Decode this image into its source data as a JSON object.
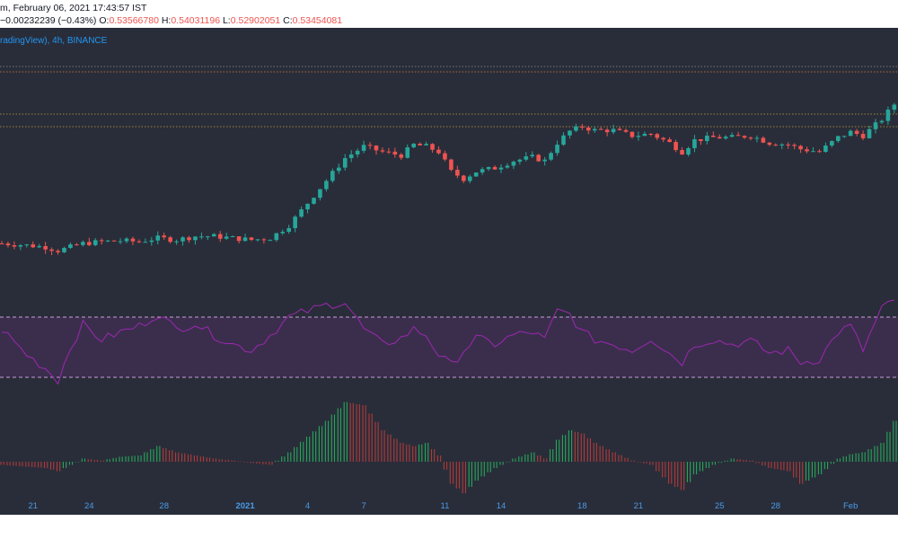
{
  "header": {
    "timestamp": "m, February 06, 2021 17:43:57 IST",
    "change": "−0.00232239 (−0.43%)",
    "ohlc": [
      {
        "label": "O:",
        "value": "0.53566780"
      },
      {
        "label": "H:",
        "value": "0.54031196"
      },
      {
        "label": "L:",
        "value": "0.52902051"
      },
      {
        "label": "C:",
        "value": "0.53454081"
      }
    ]
  },
  "legend": "radingView), 4h, BINANCE",
  "colors": {
    "background": "#292d39",
    "up": "#26a69a",
    "down": "#ef5350",
    "rsi_line": "#9c27b0",
    "rsi_band": "#4a2f5e",
    "macd_up": "#26a65b",
    "macd_down": "#b03a3a",
    "axis_text": "#4a9be8"
  },
  "chart_data": [
    {
      "type": "candlestick",
      "interval": "4h",
      "price_path": [
        [
          0,
          0.36
        ],
        [
          4,
          0.358
        ],
        [
          7,
          0.356
        ],
        [
          9,
          0.352
        ],
        [
          11,
          0.356
        ],
        [
          13,
          0.36
        ],
        [
          16,
          0.362
        ],
        [
          19,
          0.363
        ],
        [
          22,
          0.362
        ],
        [
          25,
          0.366
        ],
        [
          28,
          0.364
        ],
        [
          31,
          0.368
        ],
        [
          34,
          0.368
        ],
        [
          37,
          0.366
        ],
        [
          40,
          0.364
        ],
        [
          43,
          0.366
        ],
        [
          46,
          0.38
        ],
        [
          49,
          0.405
        ],
        [
          52,
          0.43
        ],
        [
          55,
          0.455
        ],
        [
          58,
          0.468
        ],
        [
          61,
          0.462
        ],
        [
          64,
          0.458
        ],
        [
          66,
          0.47
        ],
        [
          68,
          0.468
        ],
        [
          70,
          0.462
        ],
        [
          72,
          0.44
        ],
        [
          74,
          0.432
        ],
        [
          76,
          0.44
        ],
        [
          79,
          0.444
        ],
        [
          82,
          0.452
        ],
        [
          85,
          0.456
        ],
        [
          87,
          0.452
        ],
        [
          89,
          0.472
        ],
        [
          91,
          0.485
        ],
        [
          93,
          0.49
        ],
        [
          95,
          0.486
        ],
        [
          98,
          0.486
        ],
        [
          101,
          0.48
        ],
        [
          104,
          0.482
        ],
        [
          107,
          0.472
        ],
        [
          109,
          0.462
        ],
        [
          111,
          0.475
        ],
        [
          114,
          0.478
        ],
        [
          117,
          0.478
        ],
        [
          120,
          0.48
        ],
        [
          123,
          0.472
        ],
        [
          126,
          0.47
        ],
        [
          128,
          0.465
        ],
        [
          131,
          0.462
        ],
        [
          134,
          0.478
        ],
        [
          136,
          0.484
        ],
        [
          138,
          0.48
        ],
        [
          141,
          0.498
        ],
        [
          143,
          0.515
        ]
      ],
      "rsi_band": [
        30,
        70
      ],
      "rsi_path": [
        [
          0,
          62
        ],
        [
          4,
          45
        ],
        [
          7,
          36
        ],
        [
          9,
          28
        ],
        [
          11,
          50
        ],
        [
          13,
          65
        ],
        [
          16,
          55
        ],
        [
          19,
          60
        ],
        [
          22,
          64
        ],
        [
          25,
          72
        ],
        [
          28,
          62
        ],
        [
          31,
          66
        ],
        [
          34,
          58
        ],
        [
          37,
          52
        ],
        [
          40,
          48
        ],
        [
          43,
          58
        ],
        [
          46,
          70
        ],
        [
          49,
          74
        ],
        [
          52,
          78
        ],
        [
          55,
          80
        ],
        [
          58,
          62
        ],
        [
          61,
          52
        ],
        [
          64,
          56
        ],
        [
          66,
          62
        ],
        [
          68,
          58
        ],
        [
          70,
          45
        ],
        [
          72,
          38
        ],
        [
          74,
          48
        ],
        [
          76,
          56
        ],
        [
          79,
          52
        ],
        [
          82,
          58
        ],
        [
          85,
          60
        ],
        [
          87,
          55
        ],
        [
          89,
          74
        ],
        [
          91,
          72
        ],
        [
          93,
          60
        ],
        [
          95,
          55
        ],
        [
          98,
          52
        ],
        [
          101,
          48
        ],
        [
          104,
          56
        ],
        [
          107,
          46
        ],
        [
          109,
          40
        ],
        [
          111,
          52
        ],
        [
          114,
          55
        ],
        [
          117,
          52
        ],
        [
          120,
          54
        ],
        [
          123,
          46
        ],
        [
          126,
          48
        ],
        [
          128,
          40
        ],
        [
          131,
          42
        ],
        [
          134,
          60
        ],
        [
          136,
          64
        ],
        [
          138,
          48
        ],
        [
          141,
          76
        ],
        [
          143,
          80
        ]
      ],
      "macd_path": [
        [
          0,
          -0.05
        ],
        [
          4,
          -0.08
        ],
        [
          7,
          -0.1
        ],
        [
          9,
          -0.15
        ],
        [
          11,
          -0.05
        ],
        [
          13,
          0.05
        ],
        [
          16,
          0.02
        ],
        [
          19,
          0.08
        ],
        [
          22,
          0.1
        ],
        [
          25,
          0.25
        ],
        [
          28,
          0.15
        ],
        [
          31,
          0.1
        ],
        [
          34,
          0.05
        ],
        [
          37,
          0.02
        ],
        [
          40,
          -0.02
        ],
        [
          43,
          -0.05
        ],
        [
          46,
          0.15
        ],
        [
          49,
          0.4
        ],
        [
          52,
          0.65
        ],
        [
          55,
          0.95
        ],
        [
          58,
          0.9
        ],
        [
          61,
          0.5
        ],
        [
          64,
          0.3
        ],
        [
          66,
          0.25
        ],
        [
          68,
          0.3
        ],
        [
          70,
          0.1
        ],
        [
          72,
          -0.35
        ],
        [
          74,
          -0.5
        ],
        [
          76,
          -0.3
        ],
        [
          79,
          -0.1
        ],
        [
          82,
          0.05
        ],
        [
          85,
          0.15
        ],
        [
          87,
          0.05
        ],
        [
          89,
          0.35
        ],
        [
          91,
          0.5
        ],
        [
          93,
          0.45
        ],
        [
          95,
          0.3
        ],
        [
          98,
          0.15
        ],
        [
          101,
          0.02
        ],
        [
          104,
          -0.05
        ],
        [
          107,
          -0.35
        ],
        [
          109,
          -0.45
        ],
        [
          111,
          -0.2
        ],
        [
          114,
          -0.05
        ],
        [
          117,
          0.05
        ],
        [
          120,
          0.02
        ],
        [
          123,
          -0.1
        ],
        [
          126,
          -0.15
        ],
        [
          128,
          -0.35
        ],
        [
          131,
          -0.2
        ],
        [
          134,
          0.05
        ],
        [
          136,
          0.12
        ],
        [
          138,
          0.15
        ],
        [
          141,
          0.3
        ],
        [
          143,
          0.65
        ]
      ],
      "x_ticks": [
        {
          "label": "21",
          "bar": 5,
          "bold": false
        },
        {
          "label": "24",
          "bar": 14,
          "bold": false
        },
        {
          "label": "28",
          "bar": 26,
          "bold": false
        },
        {
          "label": "2021",
          "bar": 39,
          "bold": true
        },
        {
          "label": "4",
          "bar": 49,
          "bold": false
        },
        {
          "label": "7",
          "bar": 58,
          "bold": false
        },
        {
          "label": "11",
          "bar": 71,
          "bold": false
        },
        {
          "label": "14",
          "bar": 80,
          "bold": false
        },
        {
          "label": "18",
          "bar": 93,
          "bold": false
        },
        {
          "label": "21",
          "bar": 102,
          "bold": false
        },
        {
          "label": "25",
          "bar": 115,
          "bold": false
        },
        {
          "label": "28",
          "bar": 124,
          "bold": false
        },
        {
          "label": "Feb",
          "bar": 136,
          "bold": false
        }
      ]
    }
  ]
}
